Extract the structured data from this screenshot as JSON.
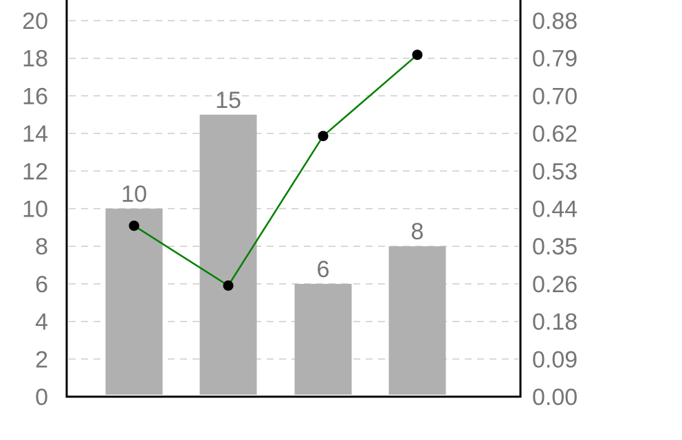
{
  "chart_data": {
    "type": "bar",
    "categories": [
      "",
      "",
      "",
      ""
    ],
    "series": [
      {
        "type": "bar",
        "axis": "left",
        "values": [
          10,
          15,
          6,
          8
        ],
        "color": "#b0b0b0"
      },
      {
        "type": "line",
        "axis": "right",
        "values": [
          0.4,
          0.26,
          0.61,
          0.8
        ],
        "color": "#008000"
      }
    ],
    "bar_labels": [
      "10",
      "15",
      "6",
      "8"
    ],
    "left_axis": {
      "ylim": [
        0,
        20
      ],
      "ticks": [
        "0",
        "2",
        "4",
        "6",
        "8",
        "10",
        "12",
        "14",
        "16",
        "18",
        "20"
      ]
    },
    "right_axis": {
      "ylim": [
        0,
        0.88
      ],
      "ticks": [
        "0.00",
        "0.09",
        "0.18",
        "0.26",
        "0.35",
        "0.44",
        "0.53",
        "0.62",
        "0.70",
        "0.79",
        "0.88"
      ]
    },
    "grid": true,
    "legend": "none",
    "colors": {
      "axis": "#000000",
      "grid": "#cccccc",
      "text": "#757575",
      "marker": "#000000"
    }
  }
}
